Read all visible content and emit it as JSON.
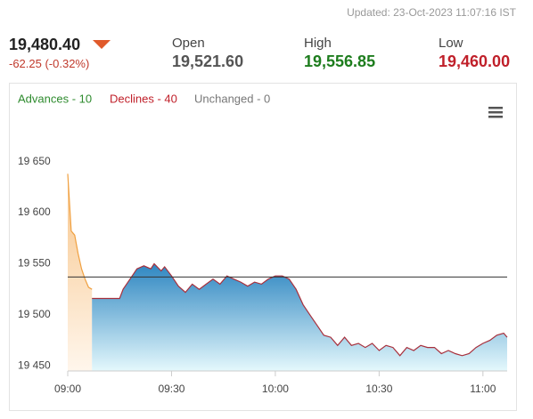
{
  "header": {
    "updated": "Updated: 23-Oct-2023 11:07:16 IST",
    "last": "19,480.40",
    "change": "-62.25 (-0.32%)",
    "open_label": "Open",
    "open": "19,521.60",
    "high_label": "High",
    "high": "19,556.85",
    "low_label": "Low",
    "low": "19,460.00"
  },
  "breadth": {
    "advances": "Advances - 10",
    "declines": "Declines - 40",
    "unchanged": "Unchanged - 0"
  },
  "chart_data": {
    "type": "area",
    "xlim": [
      "09:00",
      "11:07"
    ],
    "xticks": [
      "09:00",
      "09:30",
      "10:00",
      "10:30",
      "11:00"
    ],
    "ylim": [
      19445,
      19695
    ],
    "yticks": [
      {
        "value": 19450,
        "label": "19 450"
      },
      {
        "value": 19500,
        "label": "19 500"
      },
      {
        "value": 19550,
        "label": "19 550"
      },
      {
        "value": 19600,
        "label": "19 600"
      },
      {
        "value": 19650,
        "label": "19 650"
      }
    ],
    "reference_line": 19537,
    "series": [
      {
        "color": "#f0a040",
        "fill": [
          "#f7c58a",
          "#fff6ec"
        ],
        "x": [
          "09:00",
          "09:01",
          "09:02",
          "09:03",
          "09:04",
          "09:05",
          "09:06",
          "09:07"
        ],
        "values": [
          19638,
          19582,
          19578,
          19560,
          19545,
          19535,
          19527,
          19525
        ]
      },
      {
        "color": "#a8303c",
        "fill": [
          "#2e86c1",
          "#e4f8fc"
        ],
        "x": [
          "09:07",
          "09:15",
          "09:16",
          "09:18",
          "09:19",
          "09:20",
          "09:22",
          "09:24",
          "09:25",
          "09:27",
          "09:28",
          "09:30",
          "09:32",
          "09:34",
          "09:36",
          "09:38",
          "09:40",
          "09:42",
          "09:44",
          "09:46",
          "09:48",
          "09:50",
          "09:52",
          "09:54",
          "09:56",
          "09:58",
          "10:00",
          "10:02",
          "10:04",
          "10:06",
          "10:08",
          "10:10",
          "10:12",
          "10:14",
          "10:16",
          "10:18",
          "10:20",
          "10:22",
          "10:24",
          "10:26",
          "10:28",
          "10:30",
          "10:32",
          "10:34",
          "10:36",
          "10:38",
          "10:40",
          "10:42",
          "10:44",
          "10:46",
          "10:48",
          "10:50",
          "10:52",
          "10:54",
          "10:56",
          "10:58",
          "11:00",
          "11:02",
          "11:04",
          "11:06",
          "11:07"
        ],
        "values": [
          19516,
          19516,
          19525,
          19535,
          19540,
          19545,
          19548,
          19545,
          19550,
          19543,
          19547,
          19538,
          19528,
          19522,
          19530,
          19525,
          19530,
          19535,
          19530,
          19538,
          19535,
          19532,
          19528,
          19532,
          19530,
          19535,
          19538,
          19538,
          19535,
          19525,
          19510,
          19500,
          19490,
          19480,
          19478,
          19470,
          19478,
          19470,
          19472,
          19468,
          19472,
          19465,
          19470,
          19468,
          19460,
          19468,
          19465,
          19470,
          19468,
          19468,
          19462,
          19465,
          19462,
          19460,
          19462,
          19468,
          19472,
          19475,
          19480,
          19482,
          19478
        ]
      }
    ]
  }
}
